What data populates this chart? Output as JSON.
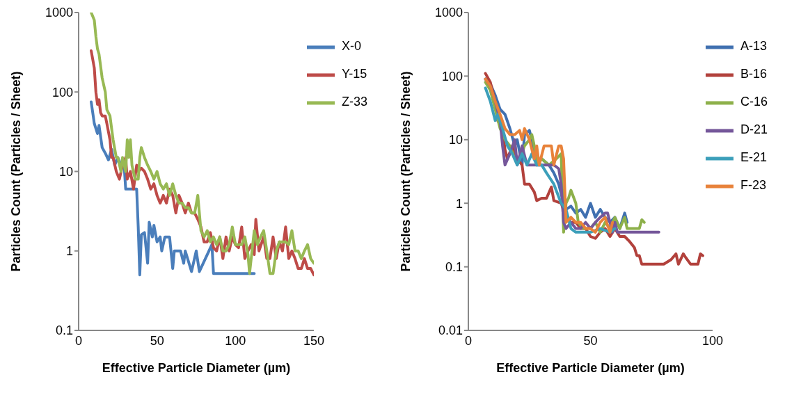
{
  "chart_data": [
    {
      "type": "line",
      "xlabel": "Effective Particle Diameter (µm)",
      "ylabel": "Particles Count (Particles / Sheet)",
      "log": "y",
      "legend": "top right",
      "xlim": [
        0,
        150
      ],
      "xticks": [
        0,
        50,
        100,
        150
      ],
      "ylim": [
        0.1,
        1000
      ],
      "yticks": [
        0.1,
        1,
        10,
        100,
        1000
      ],
      "series": [
        {
          "name": "X-0",
          "color": "#4a7ebb",
          "x": [
            8,
            10,
            12,
            13,
            15,
            17,
            19,
            21,
            23,
            25,
            27,
            29,
            30,
            37,
            38,
            39,
            40,
            42,
            44,
            45,
            47,
            48,
            50,
            52,
            53,
            55,
            58,
            60,
            61,
            65,
            67,
            68,
            72,
            75,
            77,
            85,
            86,
            112
          ],
          "values": [
            75,
            40,
            30,
            38,
            20,
            17,
            14,
            19,
            12,
            15,
            12,
            12,
            6,
            6,
            2,
            0.5,
            1.6,
            1.7,
            0.7,
            2.3,
            1.5,
            2.1,
            1.3,
            1.5,
            1,
            1.5,
            1.5,
            0.6,
            1,
            1,
            0.7,
            1,
            0.55,
            1,
            0.55,
            1.2,
            0.52,
            0.52
          ]
        },
        {
          "name": "Y-15",
          "color": "#be4b48",
          "x": [
            8,
            10,
            11,
            12,
            13,
            14,
            15,
            17,
            18,
            20,
            21,
            22,
            24,
            26,
            28,
            30,
            31,
            33,
            35,
            37,
            38,
            40,
            42,
            44,
            46,
            48,
            50,
            52,
            54,
            56,
            58,
            60,
            62,
            64,
            66,
            68,
            70,
            72,
            74,
            76,
            78,
            80,
            82,
            84,
            86,
            88,
            90,
            92,
            94,
            96,
            98,
            100,
            102,
            104,
            106,
            108,
            110,
            112,
            113,
            115,
            118,
            120,
            122,
            124,
            126,
            128,
            130,
            132,
            134,
            136,
            138,
            140,
            142,
            144,
            146,
            148,
            150
          ],
          "values": [
            330,
            200,
            100,
            70,
            80,
            55,
            50,
            50,
            40,
            25,
            15,
            15,
            10,
            8,
            12,
            15,
            8,
            10,
            6,
            12,
            10,
            11,
            10,
            8,
            6,
            7,
            5,
            4,
            5,
            4,
            6,
            5,
            3,
            5,
            4,
            3,
            4,
            3,
            3,
            2.5,
            2,
            1.3,
            1.3,
            1.7,
            1.1,
            1.0,
            1.5,
            0.8,
            1.5,
            1,
            1.5,
            1.2,
            1.1,
            2,
            0.8,
            1,
            1.2,
            0.9,
            2.5,
            1,
            1.5,
            0.8,
            0.8,
            1.5,
            0.8,
            1.3,
            1,
            2,
            0.8,
            1,
            0.8,
            0.6,
            0.6,
            0.8,
            0.6,
            0.6,
            0.5
          ]
        },
        {
          "name": "Z-33",
          "color": "#98b954",
          "x": [
            8,
            10,
            11,
            12,
            13,
            15,
            17,
            18,
            20,
            21,
            22,
            24,
            25,
            27,
            28,
            30,
            31,
            32,
            33,
            34,
            36,
            38,
            39,
            40,
            42,
            44,
            46,
            48,
            50,
            52,
            54,
            56,
            58,
            60,
            62,
            64,
            66,
            68,
            70,
            72,
            74,
            76,
            78,
            80,
            82,
            84,
            86,
            88,
            90,
            92,
            94,
            96,
            98,
            100,
            104,
            106,
            108,
            109,
            112,
            114,
            116,
            118,
            120,
            122,
            124,
            126,
            128,
            130,
            132,
            134,
            136,
            138,
            140,
            142,
            144,
            146,
            148,
            150
          ],
          "values": [
            1000,
            800,
            500,
            350,
            300,
            150,
            100,
            60,
            50,
            35,
            25,
            15,
            15,
            10,
            15,
            10,
            25,
            15,
            25,
            12,
            8,
            8,
            15,
            20,
            15,
            12,
            10,
            8,
            10,
            7,
            6,
            7,
            5,
            7,
            5,
            4,
            4,
            3.5,
            3.5,
            3,
            3,
            5,
            1.8,
            1.5,
            1.8,
            1.3,
            1.5,
            1.2,
            1.5,
            1,
            1,
            1.2,
            2,
            1.2,
            1.2,
            1.5,
            0.9,
            0.52,
            1.8,
            1.2,
            1.5,
            1.8,
            1,
            0.52,
            0.52,
            1,
            1.3,
            1.3,
            1.3,
            1.2,
            1.8,
            1,
            1,
            0.8,
            1,
            1.2,
            0.8,
            0.7
          ]
        }
      ]
    },
    {
      "type": "line",
      "xlabel": "Effective Particle Diameter (µm)",
      "ylabel": "Particles Count (Particles / Sheet)",
      "log": "y",
      "legend": "top right",
      "xlim": [
        0,
        100
      ],
      "xticks": [
        0,
        50,
        100
      ],
      "ylim": [
        0.01,
        1000
      ],
      "yticks": [
        0.01,
        0.1,
        1,
        10,
        100,
        1000
      ],
      "series": [
        {
          "name": "A-13",
          "color": "#4070b0",
          "x": [
            7,
            9,
            11,
            13,
            15,
            17,
            19,
            20,
            22,
            23,
            25,
            26,
            28,
            30,
            33,
            35,
            37,
            39,
            40,
            42,
            44,
            46,
            48,
            50,
            52,
            54,
            56,
            58,
            60,
            62,
            64,
            65
          ],
          "values": [
            90,
            75,
            50,
            30,
            25,
            15,
            8,
            10,
            4,
            12,
            14,
            10,
            4,
            5,
            4,
            3,
            2,
            1,
            0.8,
            0.9,
            0.7,
            0.8,
            0.6,
            1,
            0.6,
            0.8,
            0.6,
            0.5,
            0.6,
            0.4,
            0.7,
            0.5
          ]
        },
        {
          "name": "B-16",
          "color": "#b2413c",
          "x": [
            7,
            9,
            11,
            12,
            14,
            15,
            16,
            18,
            20,
            22,
            23,
            25,
            27,
            28,
            30,
            32,
            34,
            35,
            38,
            40,
            42,
            44,
            46,
            48,
            50,
            52,
            54,
            56,
            58,
            60,
            62,
            64,
            66,
            68,
            69,
            70,
            71,
            80,
            83,
            85,
            86,
            88,
            89,
            91,
            94,
            95,
            96
          ],
          "values": [
            110,
            80,
            40,
            20,
            15,
            7,
            5,
            8,
            5,
            4,
            2,
            2,
            1.5,
            1.1,
            1.2,
            1.2,
            1.8,
            1.1,
            1,
            0.6,
            0.5,
            0.5,
            0.4,
            0.4,
            0.3,
            0.28,
            0.35,
            0.4,
            0.3,
            0.4,
            0.3,
            0.3,
            0.25,
            0.2,
            0.15,
            0.15,
            0.11,
            0.11,
            0.13,
            0.16,
            0.11,
            0.16,
            0.14,
            0.11,
            0.11,
            0.16,
            0.15
          ]
        },
        {
          "name": "C-16",
          "color": "#8db04a",
          "x": [
            7,
            9,
            11,
            13,
            15,
            17,
            19,
            21,
            23,
            25,
            26,
            27,
            28,
            30,
            33,
            36,
            38,
            39,
            40,
            41,
            42,
            44,
            45,
            47,
            50,
            52,
            54,
            56,
            58,
            60,
            62,
            64,
            65,
            70,
            71,
            72
          ],
          "values": [
            80,
            60,
            30,
            15,
            10,
            8,
            5,
            5,
            8,
            10,
            12,
            8,
            4,
            5,
            4,
            5,
            6,
            0.35,
            1,
            1.2,
            1.6,
            1,
            0.5,
            0.4,
            0.4,
            0.5,
            0.35,
            0.5,
            0.4,
            0.6,
            0.4,
            0.6,
            0.4,
            0.4,
            0.55,
            0.5
          ]
        },
        {
          "name": "D-21",
          "color": "#75579a",
          "x": [
            7,
            9,
            11,
            13,
            14,
            15,
            17,
            19,
            20,
            22,
            24,
            30,
            35,
            37,
            38,
            39,
            40,
            42,
            44,
            46,
            48,
            50,
            52,
            54,
            56,
            57,
            58,
            59,
            60,
            61,
            78
          ],
          "values": [
            90,
            70,
            40,
            20,
            8,
            4,
            6,
            10,
            4,
            8,
            4,
            4,
            4,
            3.5,
            2,
            0.5,
            0.4,
            0.5,
            0.4,
            0.4,
            0.5,
            0.4,
            0.5,
            0.6,
            0.7,
            0.7,
            0.5,
            0.35,
            0.5,
            0.35,
            0.35
          ]
        },
        {
          "name": "E-21",
          "color": "#3c9fba",
          "x": [
            7,
            9,
            11,
            12,
            14,
            16,
            18,
            20,
            22,
            24,
            26,
            28,
            30,
            32,
            35,
            38,
            40,
            42,
            44,
            46,
            50,
            54,
            58,
            60
          ],
          "values": [
            65,
            40,
            20,
            25,
            15,
            8,
            6,
            4,
            6,
            4,
            6,
            4,
            4,
            3,
            2,
            1,
            0.8,
            0.4,
            0.35,
            0.35,
            0.35,
            0.4,
            0.35,
            0.4
          ]
        },
        {
          "name": "F-23",
          "color": "#e8823a",
          "x": [
            7,
            9,
            11,
            13,
            15,
            17,
            19,
            21,
            22,
            23,
            25,
            27,
            28,
            29,
            31,
            34,
            35,
            37,
            38,
            39,
            40,
            42,
            44,
            46,
            48,
            50,
            52,
            54,
            56,
            57,
            58,
            59
          ],
          "values": [
            90,
            70,
            40,
            25,
            15,
            12,
            12,
            14,
            10,
            15,
            10,
            5,
            8,
            4,
            8,
            8,
            4,
            8,
            8,
            5,
            0.5,
            0.6,
            0.5,
            0.5,
            0.4,
            0.4,
            0.35,
            0.5,
            0.6,
            0.45,
            0.35,
            0.5
          ]
        }
      ]
    }
  ]
}
